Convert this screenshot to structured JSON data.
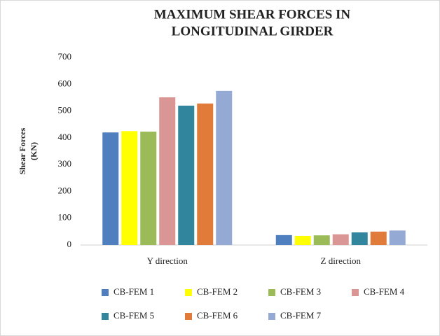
{
  "chart_data": {
    "type": "bar",
    "title": [
      "MAXIMUM SHEAR FORCES IN",
      "LONGITUDINAL GIRDER"
    ],
    "y_label": [
      "Shear Forces",
      "(KN)"
    ],
    "categories": [
      "Y direction",
      "Z direction"
    ],
    "series": [
      {
        "name": "CB-FEM 1",
        "color": "#4f7fbf",
        "values": [
          420,
          37
        ]
      },
      {
        "name": "CB-FEM 2",
        "color": "#ffff00",
        "values": [
          425,
          34
        ]
      },
      {
        "name": "CB-FEM 3",
        "color": "#9bbb59",
        "values": [
          423,
          36
        ]
      },
      {
        "name": "CB-FEM 4",
        "color": "#d99694",
        "values": [
          551,
          40
        ]
      },
      {
        "name": "CB-FEM 5",
        "color": "#31859c",
        "values": [
          520,
          47
        ]
      },
      {
        "name": "CB-FEM 6",
        "color": "#e07b39",
        "values": [
          528,
          50
        ]
      },
      {
        "name": "CB-FEM 7",
        "color": "#95a9d5",
        "values": [
          575,
          54
        ]
      }
    ],
    "ylim": [
      0,
      700
    ],
    "yticks": [
      0,
      100,
      200,
      300,
      400,
      500,
      600,
      700
    ],
    "grid": false
  }
}
